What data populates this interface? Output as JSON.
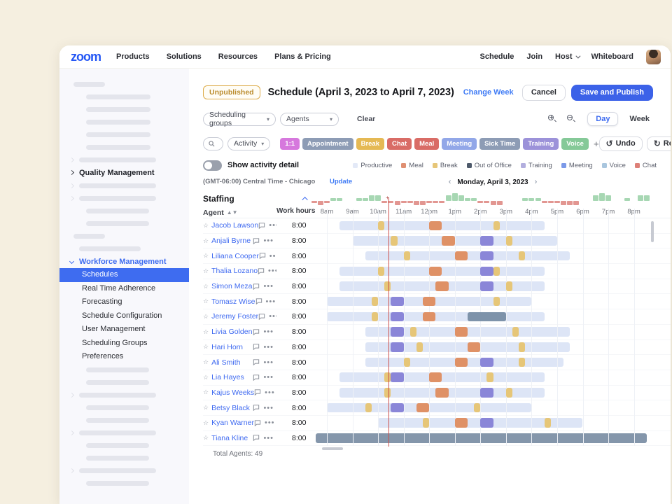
{
  "nav": {
    "logo": "zoom",
    "items": [
      "Products",
      "Solutions",
      "Resources",
      "Plans & Pricing"
    ],
    "right_items": [
      "Schedule",
      "Join",
      "Host",
      "Whiteboard"
    ]
  },
  "sidebar": {
    "quality_management": "Quality Management",
    "workforce_management": "Workforce Management",
    "submenu": [
      "Schedules",
      "Real Time Adherence",
      "Forecasting",
      "Schedule Configuration",
      "User Management",
      "Scheduling Groups",
      "Preferences"
    ],
    "selected": "Schedules"
  },
  "header": {
    "status_badge": "Unpublished",
    "title": "Schedule (April 3, 2023 to April 7, 2023)",
    "change_week": "Change Week",
    "cancel": "Cancel",
    "save": "Save and Publish"
  },
  "filters": {
    "scheduling_groups": "Scheduling groups",
    "agents": "Agents",
    "clear": "Clear",
    "day": "Day",
    "week": "Week"
  },
  "activity_bar": {
    "search_placeholder": "Search...",
    "activity_select": "Activity",
    "badges": [
      {
        "label": "1:1",
        "color": "#d678dd"
      },
      {
        "label": "Appointment",
        "color": "#8d9cb5"
      },
      {
        "label": "Break",
        "color": "#e5b954"
      },
      {
        "label": "Chat",
        "color": "#d96c66"
      },
      {
        "label": "Meal",
        "color": "#d96c66"
      },
      {
        "label": "Meeting",
        "color": "#92a7e8"
      },
      {
        "label": "Sick Time",
        "color": "#8d9cb5"
      },
      {
        "label": "Training",
        "color": "#9c92d9"
      },
      {
        "label": "Voice",
        "color": "#85c998"
      }
    ],
    "add": "+",
    "undo": "Undo",
    "redo": "Redo"
  },
  "toggle_row": {
    "label": "Show activity detail",
    "legend": [
      {
        "label": "Productive",
        "color": "#e3e9f7"
      },
      {
        "label": "Meal",
        "color": "#df8f72"
      },
      {
        "label": "Break",
        "color": "#e6c678"
      },
      {
        "label": "Out of Office",
        "color": "#4e5a6b"
      },
      {
        "label": "Training",
        "color": "#b2aede"
      },
      {
        "label": "Meeting",
        "color": "#7b99e8"
      },
      {
        "label": "Voice",
        "color": "#a9c6de"
      },
      {
        "label": "Chat",
        "color": "#dd8078"
      }
    ]
  },
  "timezone": {
    "label": "(GMT-06:00) Central Time - Chicago",
    "update": "Update",
    "date": "Monday, April 3, 2023",
    "prev": "‹",
    "next": "›"
  },
  "staffing": {
    "label": "Staffing",
    "chart": {
      "type": "bar",
      "description": "staffing surplus (green, up) / deficit (red, down) per 15-min slot; t in hours 24h",
      "values": [
        [
          7.5,
          -1
        ],
        [
          7.75,
          -2
        ],
        [
          8.0,
          -1
        ],
        [
          8.25,
          1
        ],
        [
          8.5,
          1
        ],
        [
          9.25,
          1
        ],
        [
          9.5,
          1
        ],
        [
          9.75,
          2
        ],
        [
          10.0,
          2
        ],
        [
          10.25,
          -1
        ],
        [
          10.5,
          -1
        ],
        [
          10.75,
          -2
        ],
        [
          11.0,
          -1
        ],
        [
          11.25,
          -1
        ],
        [
          11.5,
          -2
        ],
        [
          11.75,
          -2
        ],
        [
          12.0,
          -1
        ],
        [
          12.25,
          -1
        ],
        [
          12.5,
          -1
        ],
        [
          12.75,
          2
        ],
        [
          13.0,
          3
        ],
        [
          13.25,
          2
        ],
        [
          13.5,
          1
        ],
        [
          13.75,
          1
        ],
        [
          14.0,
          -1
        ],
        [
          14.25,
          -1
        ],
        [
          14.5,
          -2
        ],
        [
          14.75,
          -2
        ],
        [
          15.75,
          1
        ],
        [
          16.0,
          1
        ],
        [
          16.25,
          1
        ],
        [
          16.5,
          -1
        ],
        [
          16.75,
          -1
        ],
        [
          17.0,
          -1
        ],
        [
          17.25,
          -2
        ],
        [
          17.5,
          -2
        ],
        [
          17.75,
          -2
        ],
        [
          18.5,
          2
        ],
        [
          18.75,
          3
        ],
        [
          19.0,
          2
        ],
        [
          19.75,
          1
        ],
        [
          20.25,
          2
        ],
        [
          20.5,
          2
        ]
      ]
    }
  },
  "table": {
    "agent_header": "Agent",
    "work_hours_header": "Work hours",
    "time_labels": [
      "8am",
      "9am",
      "10am",
      "11am",
      "12pm",
      "1pm",
      "2pm",
      "3pm",
      "4pm",
      "5pm",
      "6pm",
      "7pm",
      "8pm"
    ],
    "total": "Total Agents: 49",
    "current_time": 10.4
  },
  "agents": [
    {
      "name": "Jacob Lawson",
      "work_hours": "8:00",
      "shift": [
        8.5,
        16.5
      ],
      "activities": [
        {
          "type": "break",
          "start": 10.0,
          "end": 10.25
        },
        {
          "type": "meal",
          "start": 12.0,
          "end": 12.5
        },
        {
          "type": "break",
          "start": 14.5,
          "end": 14.75
        }
      ]
    },
    {
      "name": "Anjali Byrne",
      "work_hours": "8:00",
      "shift": [
        9.0,
        17.0
      ],
      "activities": [
        {
          "type": "break",
          "start": 10.5,
          "end": 10.75
        },
        {
          "type": "meal",
          "start": 12.5,
          "end": 13.0
        },
        {
          "type": "meeting",
          "start": 14.0,
          "end": 14.5
        },
        {
          "type": "break",
          "start": 15.0,
          "end": 15.25
        }
      ]
    },
    {
      "name": "Liliana Cooper",
      "work_hours": "8:00",
      "shift": [
        9.5,
        17.5
      ],
      "activities": [
        {
          "type": "break",
          "start": 11.0,
          "end": 11.25
        },
        {
          "type": "meal",
          "start": 13.0,
          "end": 13.5
        },
        {
          "type": "meeting",
          "start": 14.0,
          "end": 14.5
        },
        {
          "type": "break",
          "start": 15.5,
          "end": 15.75
        }
      ]
    },
    {
      "name": "Thalia Lozano",
      "work_hours": "8:00",
      "shift": [
        8.5,
        16.5
      ],
      "activities": [
        {
          "type": "break",
          "start": 10.0,
          "end": 10.25
        },
        {
          "type": "meal",
          "start": 12.0,
          "end": 12.5
        },
        {
          "type": "meeting",
          "start": 14.0,
          "end": 14.5
        },
        {
          "type": "break",
          "start": 14.5,
          "end": 14.75
        }
      ]
    },
    {
      "name": "Simon Meza",
      "work_hours": "8:00",
      "shift": [
        8.5,
        16.5
      ],
      "activities": [
        {
          "type": "break",
          "start": 10.25,
          "end": 10.5
        },
        {
          "type": "meal",
          "start": 12.25,
          "end": 12.75
        },
        {
          "type": "meeting",
          "start": 14.0,
          "end": 14.5
        },
        {
          "type": "break",
          "start": 15.0,
          "end": 15.25
        }
      ]
    },
    {
      "name": "Tomasz Wise",
      "work_hours": "8:00",
      "shift": [
        8.0,
        16.0
      ],
      "activities": [
        {
          "type": "break",
          "start": 9.75,
          "end": 10.0
        },
        {
          "type": "meeting",
          "start": 10.5,
          "end": 11.0
        },
        {
          "type": "meal",
          "start": 11.75,
          "end": 12.25
        },
        {
          "type": "break",
          "start": 14.5,
          "end": 14.75
        }
      ]
    },
    {
      "name": "Jeremy Foster",
      "work_hours": "8:00",
      "shift": [
        8.0,
        16.5
      ],
      "activities": [
        {
          "type": "break",
          "start": 9.75,
          "end": 10.0
        },
        {
          "type": "meeting",
          "start": 10.5,
          "end": 11.0
        },
        {
          "type": "meal",
          "start": 11.75,
          "end": 12.25
        },
        {
          "type": "out_of_office",
          "start": 13.5,
          "end": 15.0
        }
      ]
    },
    {
      "name": "Livia Golden",
      "work_hours": "8:00",
      "shift": [
        9.5,
        17.5
      ],
      "activities": [
        {
          "type": "meeting",
          "start": 10.5,
          "end": 11.0
        },
        {
          "type": "break",
          "start": 11.25,
          "end": 11.5
        },
        {
          "type": "meal",
          "start": 13.0,
          "end": 13.5
        },
        {
          "type": "break",
          "start": 15.25,
          "end": 15.5
        }
      ]
    },
    {
      "name": "Hari Horn",
      "work_hours": "8:00",
      "shift": [
        9.5,
        17.5
      ],
      "activities": [
        {
          "type": "meeting",
          "start": 10.5,
          "end": 11.0
        },
        {
          "type": "break",
          "start": 11.5,
          "end": 11.75
        },
        {
          "type": "meal",
          "start": 13.5,
          "end": 14.0
        },
        {
          "type": "break",
          "start": 15.5,
          "end": 15.75
        }
      ]
    },
    {
      "name": "Ali Smith",
      "work_hours": "8:00",
      "shift": [
        9.5,
        17.25
      ],
      "activities": [
        {
          "type": "break",
          "start": 11.0,
          "end": 11.25
        },
        {
          "type": "meal",
          "start": 13.0,
          "end": 13.5
        },
        {
          "type": "meeting",
          "start": 14.0,
          "end": 14.5
        },
        {
          "type": "break",
          "start": 15.5,
          "end": 15.75
        }
      ]
    },
    {
      "name": "Lia Hayes",
      "work_hours": "8:00",
      "shift": [
        8.5,
        16.5
      ],
      "activities": [
        {
          "type": "break",
          "start": 10.25,
          "end": 10.5
        },
        {
          "type": "meeting",
          "start": 10.5,
          "end": 11.0
        },
        {
          "type": "meal",
          "start": 12.0,
          "end": 12.5
        },
        {
          "type": "break",
          "start": 14.25,
          "end": 14.5
        }
      ]
    },
    {
      "name": "Kajus Weeks",
      "work_hours": "8:00",
      "shift": [
        8.5,
        16.5
      ],
      "activities": [
        {
          "type": "break",
          "start": 10.25,
          "end": 10.5
        },
        {
          "type": "meal",
          "start": 12.25,
          "end": 12.75
        },
        {
          "type": "meeting",
          "start": 14.0,
          "end": 14.5
        },
        {
          "type": "break",
          "start": 15.0,
          "end": 15.25
        }
      ]
    },
    {
      "name": "Betsy Black",
      "work_hours": "8:00",
      "shift": [
        8.0,
        16.0
      ],
      "activities": [
        {
          "type": "break",
          "start": 9.5,
          "end": 9.75
        },
        {
          "type": "meeting",
          "start": 10.5,
          "end": 11.0
        },
        {
          "type": "meal",
          "start": 11.5,
          "end": 12.0
        },
        {
          "type": "break",
          "start": 13.75,
          "end": 14.0
        }
      ]
    },
    {
      "name": "Kyan Warner",
      "work_hours": "8:00",
      "shift": [
        10.0,
        18.0
      ],
      "activities": [
        {
          "type": "break",
          "start": 11.75,
          "end": 12.0
        },
        {
          "type": "meal",
          "start": 13.0,
          "end": 13.5
        },
        {
          "type": "meeting",
          "start": 14.0,
          "end": 14.5
        },
        {
          "type": "break",
          "start": 16.5,
          "end": 16.75
        }
      ]
    },
    {
      "name": "Tiana Kline",
      "work_hours": "8:00",
      "off_full_day": true,
      "shift": [
        7.55,
        20.5
      ],
      "activities": []
    }
  ],
  "colors": {
    "accent": "#3e6cf0",
    "shift_base": "#dde5f6",
    "break": "#e6c678",
    "meal": "#df9166",
    "meeting": "#8a86d8",
    "out_of_office": "#7e93aa",
    "off_full": "#8496ab",
    "staff_up": "#a7d7b3",
    "staff_down": "#e29691",
    "now_line": "#cc4f4a"
  }
}
